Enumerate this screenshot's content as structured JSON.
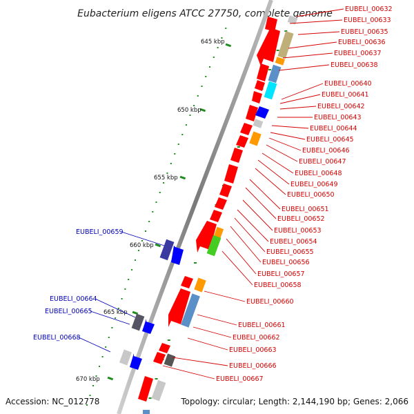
{
  "header": {
    "title": "Eubacterium eligens ATCC 27750, complete genome"
  },
  "footer": {
    "accession": "Accession: NC_012778",
    "topology": "Topology: circular; Length: 2,144,190 bp; Genes: 2,066"
  },
  "scale_labels": [
    "645 kbp",
    "650 kbp",
    "655 kbp",
    "660 kbp",
    "665 kbp",
    "670 kbp"
  ],
  "genes_right": [
    "EUBELI_00632",
    "EUBELI_00633",
    "EUBELI_00635",
    "EUBELI_00636",
    "EUBELI_00637",
    "EUBELI_00638",
    "EUBELI_00640",
    "EUBELI_00641",
    "EUBELI_00642",
    "EUBELI_00643",
    "EUBELI_00644",
    "EUBELI_00645",
    "EUBELI_00646",
    "EUBELI_00647",
    "EUBELI_00648",
    "EUBELI_00649",
    "EUBELI_00650",
    "EUBELI_00651",
    "EUBELI_00652",
    "EUBELI_00653",
    "EUBELI_00654",
    "EUBELI_00655",
    "EUBELI_00656",
    "EUBELI_00657",
    "EUBELI_00658",
    "EUBELI_00660",
    "EUBELI_00661",
    "EUBELI_00662",
    "EUBELI_00663",
    "EUBELI_00666",
    "EUBELI_00667"
  ],
  "genes_left": [
    "EUBELI_00659",
    "EUBELI_00664",
    "EUBELI_00665",
    "EUBELI_00668"
  ],
  "colors": {
    "forward": "#ff0000",
    "reverse": "#0000ff",
    "backbone": "#8c8c8c",
    "gc": "#1e8c1e",
    "right_label": "#d40000",
    "left_label": "#0000b8"
  }
}
